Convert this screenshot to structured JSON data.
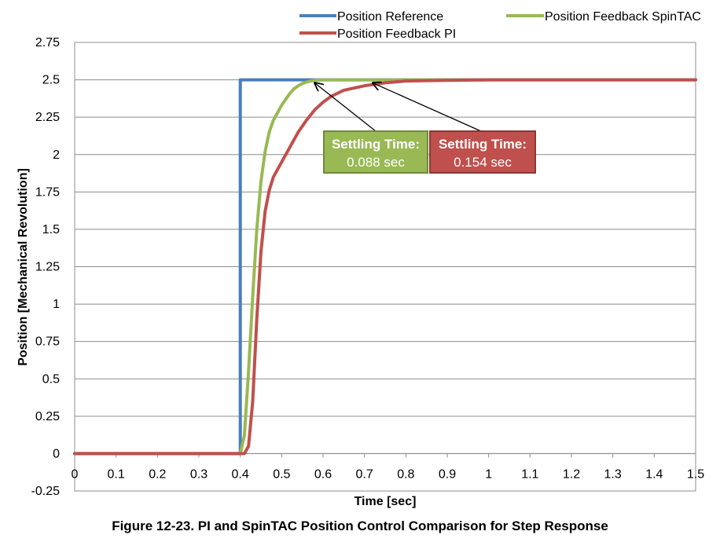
{
  "chart_data": {
    "type": "line",
    "title": "",
    "xlabel": "Time [sec]",
    "ylabel": "Position [Mechanical Revolution]",
    "xlim": [
      0,
      1.5
    ],
    "ylim": [
      -0.25,
      2.75
    ],
    "x_ticks": [
      0,
      0.1,
      0.2,
      0.3,
      0.4,
      0.5,
      0.6,
      0.7,
      0.8,
      0.9,
      1,
      1.1,
      1.2,
      1.3,
      1.4,
      1.5
    ],
    "x_tick_labels": [
      "0",
      "0.1",
      "0.2",
      "0.3",
      "0.4",
      "0.5",
      "0.6",
      "0.7",
      "0.8",
      "0.9",
      "1",
      "1.1",
      "1.2",
      "1.3",
      "1.4",
      "1.5"
    ],
    "y_ticks": [
      -0.25,
      0,
      0.25,
      0.5,
      0.75,
      1,
      1.25,
      1.5,
      1.75,
      2,
      2.25,
      2.5,
      2.75
    ],
    "y_tick_labels": [
      "-0.25",
      "0",
      "0.25",
      "0.5",
      "0.75",
      "1",
      "1.25",
      "1.5",
      "1.75",
      "2",
      "2.25",
      "2.5",
      "2.75"
    ],
    "grid": "horizontal",
    "legend_position": "top",
    "series": [
      {
        "name": "Position Reference",
        "color": "#4a7ebb",
        "x": [
          0,
          0.4,
          0.4,
          1.5
        ],
        "y": [
          0,
          0,
          2.5,
          2.5
        ]
      },
      {
        "name": "Position Feedback SpinTAC",
        "color": "#98b954",
        "x": [
          0,
          0.4,
          0.41,
          0.42,
          0.43,
          0.44,
          0.45,
          0.46,
          0.47,
          0.48,
          0.49,
          0.5,
          0.51,
          0.52,
          0.53,
          0.54,
          0.55,
          0.56,
          0.57,
          0.58,
          0.6,
          0.65,
          0.7,
          0.8,
          1.5
        ],
        "y": [
          0,
          0,
          0.12,
          0.55,
          1.05,
          1.5,
          1.82,
          2.02,
          2.15,
          2.23,
          2.28,
          2.33,
          2.37,
          2.41,
          2.44,
          2.46,
          2.475,
          2.485,
          2.492,
          2.496,
          2.5,
          2.5,
          2.5,
          2.5,
          2.5
        ]
      },
      {
        "name": "Position Feedback PI",
        "color": "#c0504d",
        "x": [
          0,
          0.41,
          0.42,
          0.43,
          0.44,
          0.45,
          0.46,
          0.47,
          0.48,
          0.5,
          0.52,
          0.54,
          0.56,
          0.58,
          0.6,
          0.62,
          0.65,
          0.7,
          0.75,
          0.8,
          0.9,
          1,
          1.5
        ],
        "y": [
          0,
          0,
          0.05,
          0.35,
          0.9,
          1.35,
          1.62,
          1.76,
          1.85,
          1.95,
          2.05,
          2.15,
          2.23,
          2.3,
          2.35,
          2.39,
          2.43,
          2.46,
          2.48,
          2.492,
          2.497,
          2.5,
          2.5
        ]
      }
    ],
    "annotations": [
      {
        "title": "Settling Time:",
        "value": "0.088 sec",
        "color": "#98b954",
        "arrow_to": [
          0.58,
          2.5
        ]
      },
      {
        "title": "Settling Time:",
        "value": "0.154 sec",
        "color": "#c0504d",
        "arrow_to": [
          0.72,
          2.5
        ]
      }
    ]
  },
  "caption": "Figure 12-23. PI and SpinTAC Position Control Comparison for Step Response"
}
